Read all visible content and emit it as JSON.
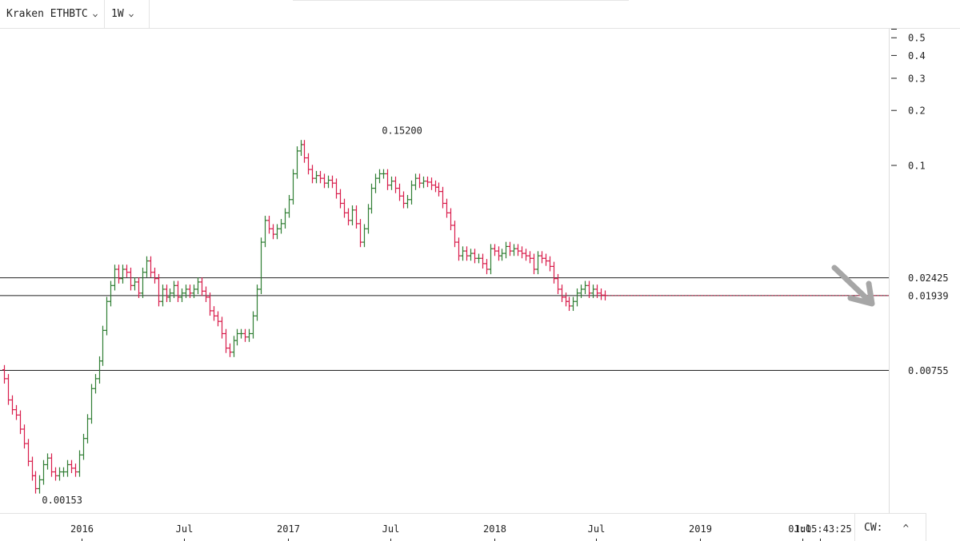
{
  "toolbar": {
    "symbol_label": "Kraken ETHBTC",
    "interval_label": "1W"
  },
  "footer": {
    "countdown": "01:05:43:25",
    "cw_label": "CW:"
  },
  "colors": {
    "up": "#2e7d32",
    "down": "#d81b4a",
    "level_line": "#222222",
    "current_price_line": "#d81b4a",
    "arrow": "#a6a6a6"
  },
  "chart_data": {
    "type": "ohlc",
    "scale": "log",
    "ylim": [
      0.00125,
      0.56
    ],
    "xlim": [
      "2015-08-10",
      "2019-12-01"
    ],
    "y_ticks": [
      0.5,
      0.4,
      0.3,
      0.2,
      0.1
    ],
    "y_tick_labels": [
      "0.5",
      "0.4",
      "0.3",
      "0.2",
      "0.1"
    ],
    "x_ticks": [
      {
        "date": "2016-01-01",
        "label": "2016"
      },
      {
        "date": "2016-07-01",
        "label": "Jul"
      },
      {
        "date": "2017-01-01",
        "label": "2017"
      },
      {
        "date": "2017-07-01",
        "label": "Jul"
      },
      {
        "date": "2018-01-01",
        "label": "2018"
      },
      {
        "date": "2018-07-01",
        "label": "Jul"
      },
      {
        "date": "2019-01-01",
        "label": "2019"
      },
      {
        "date": "2019-07-01",
        "label": "Jul"
      }
    ],
    "horizontal_levels": [
      {
        "value": 0.02425,
        "label": "0.02425"
      },
      {
        "value": 0.01939,
        "label": "0.01939"
      },
      {
        "value": 0.00755,
        "label": "0.00755"
      }
    ],
    "current_price": 0.01939,
    "annotations": [
      {
        "text": "0.15200",
        "value": 0.152,
        "date": "2017-06-12"
      },
      {
        "text": "0.00153",
        "value": 0.00153,
        "date": "2015-10-19"
      }
    ],
    "start_date": "2015-08-17",
    "weekly_close": [
      0.0068,
      0.0052,
      0.0046,
      0.0043,
      0.0036,
      0.003,
      0.0024,
      0.002,
      0.0017,
      0.0019,
      0.0023,
      0.0025,
      0.0021,
      0.002,
      0.0021,
      0.0021,
      0.0023,
      0.0022,
      0.0021,
      0.0026,
      0.0032,
      0.0041,
      0.006,
      0.0068,
      0.0085,
      0.0125,
      0.018,
      0.022,
      0.027,
      0.024,
      0.027,
      0.026,
      0.022,
      0.023,
      0.02,
      0.026,
      0.03,
      0.026,
      0.024,
      0.018,
      0.021,
      0.019,
      0.02,
      0.022,
      0.019,
      0.02,
      0.021,
      0.02,
      0.021,
      0.023,
      0.0205,
      0.019,
      0.016,
      0.015,
      0.014,
      0.012,
      0.01,
      0.0095,
      0.011,
      0.012,
      0.012,
      0.0115,
      0.012,
      0.015,
      0.021,
      0.038,
      0.05,
      0.045,
      0.042,
      0.045,
      0.048,
      0.055,
      0.065,
      0.09,
      0.12,
      0.13,
      0.11,
      0.095,
      0.085,
      0.088,
      0.085,
      0.08,
      0.083,
      0.08,
      0.07,
      0.062,
      0.055,
      0.05,
      0.057,
      0.048,
      0.038,
      0.045,
      0.058,
      0.075,
      0.085,
      0.09,
      0.09,
      0.078,
      0.082,
      0.075,
      0.068,
      0.062,
      0.065,
      0.078,
      0.085,
      0.08,
      0.082,
      0.081,
      0.078,
      0.076,
      0.072,
      0.062,
      0.055,
      0.047,
      0.038,
      0.032,
      0.034,
      0.032,
      0.033,
      0.031,
      0.031,
      0.029,
      0.027,
      0.035,
      0.034,
      0.032,
      0.033,
      0.036,
      0.034,
      0.035,
      0.034,
      0.033,
      0.032,
      0.031,
      0.027,
      0.032,
      0.031,
      0.03,
      0.028,
      0.024,
      0.021,
      0.019,
      0.018,
      0.017,
      0.018,
      0.02,
      0.021,
      0.022,
      0.02,
      0.021,
      0.02,
      0.0195,
      0.0194
    ]
  }
}
